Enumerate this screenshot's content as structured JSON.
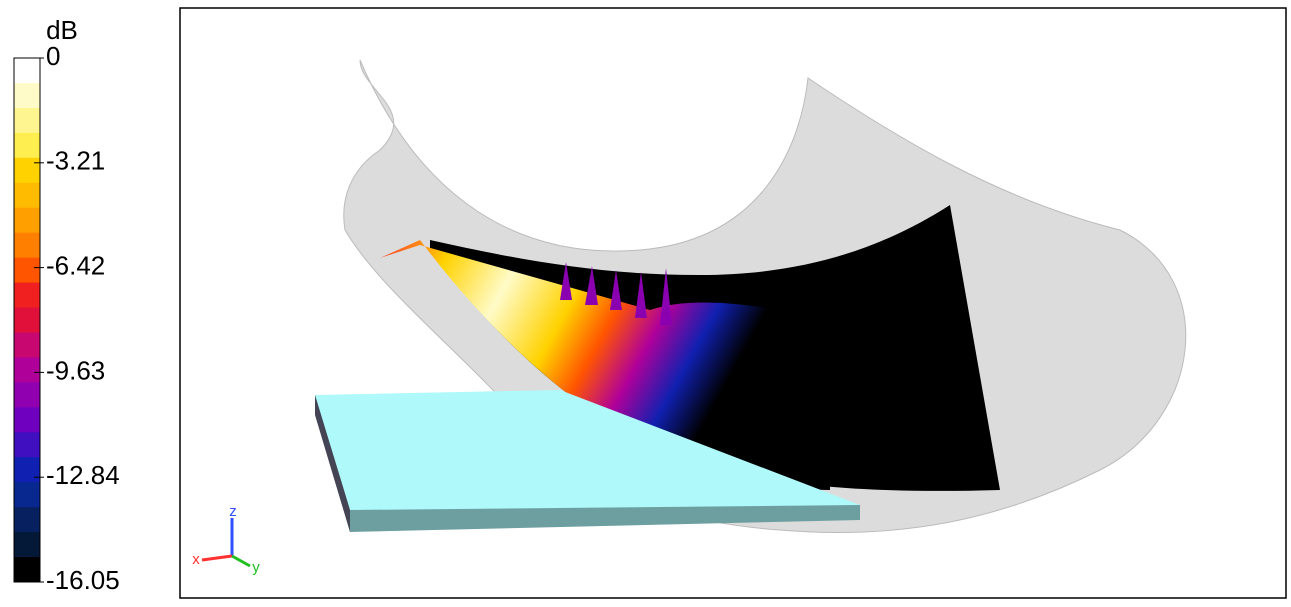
{
  "legend": {
    "title": "dB",
    "labels": [
      "0",
      "-3.21",
      "-6.42",
      "-9.63",
      "-12.84",
      "-16.05"
    ],
    "colors": [
      "#ffffff",
      "#fffbc8",
      "#fff590",
      "#ffee50",
      "#ffd200",
      "#ffbb00",
      "#ffa000",
      "#ff8000",
      "#ff5500",
      "#f02020",
      "#e0103a",
      "#c80870",
      "#b0009a",
      "#9000b0",
      "#7000c0",
      "#4010c0",
      "#1020b0",
      "#082890",
      "#062060",
      "#041838",
      "#000000"
    ]
  },
  "axes": {
    "x": "x",
    "y": "y",
    "z": "z"
  }
}
